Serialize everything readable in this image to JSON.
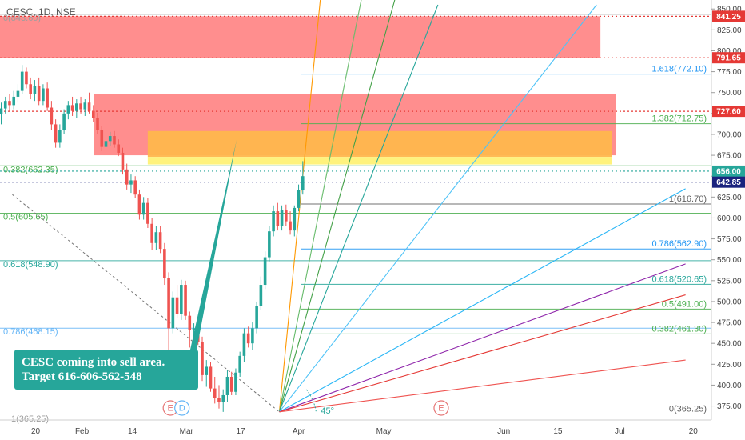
{
  "chart_data": {
    "type": "candlestick",
    "symbol_label": "CESC, 1D, NSE",
    "ylim": [
      365,
      855
    ],
    "y_ticks": [
      "375.00",
      "400.00",
      "425.00",
      "450.00",
      "475.00",
      "500.00",
      "525.00",
      "550.00",
      "575.00",
      "600.00",
      "625.00",
      "650.00",
      "675.00",
      "700.00",
      "725.00",
      "750.00",
      "775.00",
      "800.00",
      "825.00",
      "850.00"
    ],
    "x_ticks": [
      {
        "label": "20",
        "day": 0
      },
      {
        "label": "Feb",
        "day": 12
      },
      {
        "label": "14",
        "day": 25
      },
      {
        "label": "Mar",
        "day": 39
      },
      {
        "label": "17",
        "day": 53
      },
      {
        "label": "Apr",
        "day": 68
      },
      {
        "label": "May",
        "day": 90
      },
      {
        "label": "Jun",
        "day": 121
      },
      {
        "label": "15",
        "day": 135
      },
      {
        "label": "Jul",
        "day": 151
      },
      {
        "label": "20",
        "day": 170
      }
    ],
    "price_tags": [
      {
        "label": "841.25",
        "value": 841.25,
        "color": "#e53935"
      },
      {
        "label": "791.65",
        "value": 791.65,
        "color": "#e53935"
      },
      {
        "label": "727.60",
        "value": 727.6,
        "color": "#e53935"
      },
      {
        "label": "656.00",
        "value": 656.0,
        "color": "#26a69a"
      },
      {
        "label": "642.85",
        "value": 642.85,
        "color": "#1a237e"
      }
    ],
    "zones": [
      {
        "name": "upper-supply-zone",
        "y1": 841.25,
        "y2": 791.65,
        "x1": 0,
        "x2": 146,
        "color": "#ff5252",
        "opacity": 0.65
      },
      {
        "name": "sell-zone",
        "y1": 748,
        "y2": 675,
        "x1": 15,
        "x2": 150,
        "color": "#ff5252",
        "opacity": 0.65
      },
      {
        "name": "target-zone-orange",
        "y1": 704,
        "y2": 673,
        "x1": 29,
        "x2": 149,
        "color": "#ffb74d",
        "opacity": 0.95
      },
      {
        "name": "target-zone-yellow",
        "y1": 673,
        "y2": 664,
        "x1": 29,
        "x2": 149,
        "color": "#fff176",
        "opacity": 0.95
      }
    ],
    "dotted_levels": [
      {
        "value": 841.25,
        "color": "#e53935"
      },
      {
        "value": 791.65,
        "color": "#e53935"
      },
      {
        "value": 727.6,
        "color": "#e53935"
      },
      {
        "value": 656.0,
        "color": "#26a69a"
      },
      {
        "value": 642.85,
        "color": "#1a237e"
      }
    ],
    "left_fib": [
      {
        "label": "0(843.60)",
        "value": 843.6,
        "color": "#9e9e9e"
      },
      {
        "label": "0.382(662.35)",
        "value": 662.35,
        "color": "#4caf50"
      },
      {
        "label": "0.5(605.65)",
        "value": 605.65,
        "color": "#4caf50"
      },
      {
        "label": "0.618(548.90)",
        "value": 548.9,
        "color": "#26a69a"
      },
      {
        "label": "0.786(468.15)",
        "value": 468.15,
        "color": "#64b5f6"
      }
    ],
    "right_fib": [
      {
        "label": "1.618(772.10)",
        "value": 772.1,
        "color": "#2196f3"
      },
      {
        "label": "1.382(712.75)",
        "value": 712.75,
        "color": "#4caf50"
      },
      {
        "label": "1(616.70)",
        "value": 616.7,
        "color": "#616161"
      },
      {
        "label": "0.786(562.90)",
        "value": 562.9,
        "color": "#2196f3"
      },
      {
        "label": "0.618(520.65)",
        "value": 520.65,
        "color": "#26a69a"
      },
      {
        "label": "0.5(491.00)",
        "value": 491.0,
        "color": "#4caf50"
      },
      {
        "label": "0.382(461.30)",
        "value": 461.3,
        "color": "#4caf50"
      },
      {
        "label": "0(365.25)",
        "value": 365.25,
        "color": "#616161"
      }
    ],
    "gann_origin": {
      "day": 63,
      "value": 368
    },
    "gann_fan": [
      {
        "to_day": 74,
        "to_value": 880,
        "color": "#ff9800"
      },
      {
        "to_day": 85,
        "to_value": 880,
        "color": "#66bb6a"
      },
      {
        "to_day": 94,
        "to_value": 880,
        "color": "#43a047"
      },
      {
        "to_day": 104,
        "to_value": 855,
        "color": "#26a69a"
      },
      {
        "to_day": 145,
        "to_value": 855,
        "color": "#4fc3f7"
      },
      {
        "to_day": 168,
        "to_value": 635,
        "color": "#29b6f6"
      },
      {
        "to_day": 168,
        "to_value": 545,
        "color": "#8e24aa"
      },
      {
        "to_day": 168,
        "to_value": 508,
        "color": "#e53935"
      },
      {
        "to_day": 168,
        "to_value": 430,
        "color": "#ef5350"
      }
    ],
    "fan_angle_label": "45°",
    "candles": [
      {
        "o": 724,
        "h": 738,
        "l": 712,
        "c": 731
      },
      {
        "o": 731,
        "h": 745,
        "l": 725,
        "c": 740
      },
      {
        "o": 740,
        "h": 748,
        "l": 728,
        "c": 735
      },
      {
        "o": 735,
        "h": 752,
        "l": 730,
        "c": 745
      },
      {
        "o": 745,
        "h": 760,
        "l": 738,
        "c": 752
      },
      {
        "o": 752,
        "h": 783,
        "l": 748,
        "c": 775
      },
      {
        "o": 775,
        "h": 780,
        "l": 755,
        "c": 760
      },
      {
        "o": 760,
        "h": 768,
        "l": 742,
        "c": 748
      },
      {
        "o": 748,
        "h": 765,
        "l": 740,
        "c": 758
      },
      {
        "o": 758,
        "h": 768,
        "l": 735,
        "c": 740
      },
      {
        "o": 740,
        "h": 760,
        "l": 735,
        "c": 755
      },
      {
        "o": 755,
        "h": 762,
        "l": 728,
        "c": 732
      },
      {
        "o": 732,
        "h": 740,
        "l": 705,
        "c": 712
      },
      {
        "o": 712,
        "h": 718,
        "l": 684,
        "c": 690
      },
      {
        "o": 690,
        "h": 712,
        "l": 684,
        "c": 705
      },
      {
        "o": 705,
        "h": 730,
        "l": 700,
        "c": 725
      },
      {
        "o": 725,
        "h": 740,
        "l": 718,
        "c": 735
      },
      {
        "o": 735,
        "h": 745,
        "l": 722,
        "c": 728
      },
      {
        "o": 728,
        "h": 742,
        "l": 720,
        "c": 737
      },
      {
        "o": 737,
        "h": 745,
        "l": 725,
        "c": 730
      },
      {
        "o": 730,
        "h": 742,
        "l": 722,
        "c": 738
      },
      {
        "o": 738,
        "h": 750,
        "l": 725,
        "c": 728
      },
      {
        "o": 728,
        "h": 735,
        "l": 715,
        "c": 720
      },
      {
        "o": 720,
        "h": 726,
        "l": 700,
        "c": 705
      },
      {
        "o": 705,
        "h": 710,
        "l": 680,
        "c": 685
      },
      {
        "o": 685,
        "h": 700,
        "l": 678,
        "c": 692
      },
      {
        "o": 692,
        "h": 703,
        "l": 686,
        "c": 698
      },
      {
        "o": 698,
        "h": 704,
        "l": 684,
        "c": 688
      },
      {
        "o": 688,
        "h": 694,
        "l": 674,
        "c": 678
      },
      {
        "o": 678,
        "h": 684,
        "l": 652,
        "c": 658
      },
      {
        "o": 658,
        "h": 665,
        "l": 634,
        "c": 640
      },
      {
        "o": 640,
        "h": 652,
        "l": 630,
        "c": 645
      },
      {
        "o": 645,
        "h": 650,
        "l": 624,
        "c": 628
      },
      {
        "o": 628,
        "h": 634,
        "l": 598,
        "c": 604
      },
      {
        "o": 604,
        "h": 625,
        "l": 598,
        "c": 618
      },
      {
        "o": 618,
        "h": 624,
        "l": 588,
        "c": 593
      },
      {
        "o": 593,
        "h": 600,
        "l": 562,
        "c": 570
      },
      {
        "o": 570,
        "h": 590,
        "l": 562,
        "c": 583
      },
      {
        "o": 583,
        "h": 590,
        "l": 558,
        "c": 563
      },
      {
        "o": 563,
        "h": 570,
        "l": 520,
        "c": 528
      },
      {
        "o": 528,
        "h": 535,
        "l": 432,
        "c": 468
      },
      {
        "o": 468,
        "h": 512,
        "l": 462,
        "c": 505
      },
      {
        "o": 505,
        "h": 520,
        "l": 480,
        "c": 485
      },
      {
        "o": 485,
        "h": 526,
        "l": 478,
        "c": 520
      },
      {
        "o": 520,
        "h": 525,
        "l": 478,
        "c": 483
      },
      {
        "o": 483,
        "h": 488,
        "l": 445,
        "c": 466
      },
      {
        "o": 466,
        "h": 474,
        "l": 440,
        "c": 468
      },
      {
        "o": 468,
        "h": 472,
        "l": 448,
        "c": 452
      },
      {
        "o": 452,
        "h": 458,
        "l": 405,
        "c": 412
      },
      {
        "o": 412,
        "h": 430,
        "l": 398,
        "c": 422
      },
      {
        "o": 422,
        "h": 428,
        "l": 392,
        "c": 396
      },
      {
        "o": 396,
        "h": 410,
        "l": 378,
        "c": 385
      },
      {
        "o": 385,
        "h": 400,
        "l": 372,
        "c": 380
      },
      {
        "o": 380,
        "h": 395,
        "l": 368,
        "c": 388
      },
      {
        "o": 388,
        "h": 418,
        "l": 380,
        "c": 410
      },
      {
        "o": 410,
        "h": 416,
        "l": 388,
        "c": 392
      },
      {
        "o": 392,
        "h": 420,
        "l": 388,
        "c": 415
      },
      {
        "o": 415,
        "h": 440,
        "l": 410,
        "c": 435
      },
      {
        "o": 435,
        "h": 468,
        "l": 428,
        "c": 462
      },
      {
        "o": 462,
        "h": 470,
        "l": 445,
        "c": 450
      },
      {
        "o": 450,
        "h": 475,
        "l": 442,
        "c": 468
      },
      {
        "o": 468,
        "h": 500,
        "l": 462,
        "c": 495
      },
      {
        "o": 495,
        "h": 530,
        "l": 490,
        "c": 520
      },
      {
        "o": 520,
        "h": 560,
        "l": 515,
        "c": 553
      },
      {
        "o": 553,
        "h": 590,
        "l": 548,
        "c": 584
      },
      {
        "o": 584,
        "h": 615,
        "l": 578,
        "c": 608
      },
      {
        "o": 608,
        "h": 618,
        "l": 585,
        "c": 590
      },
      {
        "o": 590,
        "h": 615,
        "l": 585,
        "c": 610
      },
      {
        "o": 610,
        "h": 616,
        "l": 590,
        "c": 596
      },
      {
        "o": 596,
        "h": 608,
        "l": 580,
        "c": 585
      },
      {
        "o": 585,
        "h": 615,
        "l": 578,
        "c": 612
      },
      {
        "o": 612,
        "h": 640,
        "l": 608,
        "c": 633
      },
      {
        "o": 633,
        "h": 668,
        "l": 628,
        "c": 650
      }
    ],
    "callout": {
      "lines": [
        "CESC coming into sell area.",
        "Target 616-606-562-548"
      ],
      "color": "#26a69a"
    },
    "event_badges": [
      {
        "letter": "E",
        "day": 27,
        "color": "#e57373"
      },
      {
        "letter": "D",
        "day": 30,
        "color": "#64b5f6"
      },
      {
        "letter": "E",
        "day": 97,
        "color": "#e57373"
      }
    ],
    "dashed_trendline": {
      "from_day": -6,
      "from_value": 628,
      "to_day": 63,
      "to_value": 368,
      "color": "#757575"
    },
    "corner_partial_label": "1(365.25)"
  }
}
